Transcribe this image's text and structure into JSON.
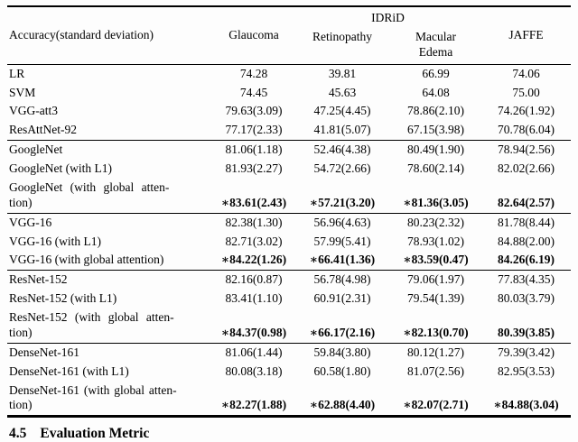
{
  "table": {
    "header": {
      "accuracy_label": "Accuracy(standard deviation)",
      "glaucoma": "Glaucoma",
      "idrid": "IDRiD",
      "retinopathy": "Retinopathy",
      "macular_edema": "Macular\nEdema",
      "jaffe": "JAFFE"
    },
    "rows": [
      {
        "label": "LR",
        "best": false,
        "v": [
          "74.28",
          "39.81",
          "66.99",
          "74.06"
        ]
      },
      {
        "label": "SVM",
        "best": false,
        "v": [
          "74.45",
          "45.63",
          "64.08",
          "75.00"
        ]
      },
      {
        "label": "VGG-att3",
        "best": false,
        "v": [
          "79.63(3.09)",
          "47.25(4.45)",
          "78.86(2.10)",
          "74.26(1.92)"
        ]
      },
      {
        "label": "ResAttNet-92",
        "best": false,
        "v": [
          "77.17(2.33)",
          "41.81(5.07)",
          "67.15(3.98)",
          "70.78(6.04)"
        ]
      },
      {
        "label": "GoogleNet",
        "best": false,
        "v": [
          "81.06(1.18)",
          "52.46(4.38)",
          "80.49(1.90)",
          "78.94(2.56)"
        ]
      },
      {
        "label": "GoogleNet (with L1)",
        "best": false,
        "v": [
          "81.93(2.27)",
          "54.72(2.66)",
          "78.60(2.14)",
          "82.02(2.66)"
        ]
      },
      {
        "label": "GoogleNet (with global atten-\ntion)",
        "best": true,
        "v": [
          "∗83.61(2.43)",
          "∗57.21(3.20)",
          "∗81.36(3.05)",
          "82.64(2.57)"
        ]
      },
      {
        "label": "VGG-16",
        "best": false,
        "v": [
          "82.38(1.30)",
          "56.96(4.63)",
          "80.23(2.32)",
          "81.78(8.44)"
        ]
      },
      {
        "label": "VGG-16 (with L1)",
        "best": false,
        "v": [
          "82.71(3.02)",
          "57.99(5.41)",
          "78.93(1.02)",
          "84.88(2.00)"
        ]
      },
      {
        "label": "VGG-16 (with global attention)",
        "best": true,
        "v": [
          "∗84.22(1.26)",
          "∗66.41(1.36)",
          "∗83.59(0.47)",
          "84.26(6.19)"
        ]
      },
      {
        "label": "ResNet-152",
        "best": false,
        "v": [
          "82.16(0.87)",
          "56.78(4.98)",
          "79.06(1.97)",
          "77.83(4.35)"
        ]
      },
      {
        "label": "ResNet-152 (with L1)",
        "best": false,
        "v": [
          "83.41(1.10)",
          "60.91(2.31)",
          "79.54(1.39)",
          "80.03(3.79)"
        ]
      },
      {
        "label": "ResNet-152 (with global atten-\ntion)",
        "best": true,
        "v": [
          "∗84.37(0.98)",
          "∗66.17(2.16)",
          "∗82.13(0.70)",
          "80.39(3.85)"
        ]
      },
      {
        "label": "DenseNet-161",
        "best": false,
        "v": [
          "81.06(1.44)",
          "59.84(3.80)",
          "80.12(1.27)",
          "79.39(3.42)"
        ]
      },
      {
        "label": "DenseNet-161 (with L1)",
        "best": false,
        "v": [
          "80.08(3.18)",
          "60.58(1.80)",
          "81.07(2.56)",
          "82.95(3.53)"
        ]
      },
      {
        "label": "DenseNet-161 (with global atten-\ntion)",
        "best": true,
        "v": [
          "∗82.27(1.88)",
          "∗62.88(4.40)",
          "∗82.07(2.71)",
          "∗84.88(3.04)"
        ]
      }
    ]
  },
  "section": {
    "number": "4.5",
    "title": "Evaluation Metric"
  }
}
